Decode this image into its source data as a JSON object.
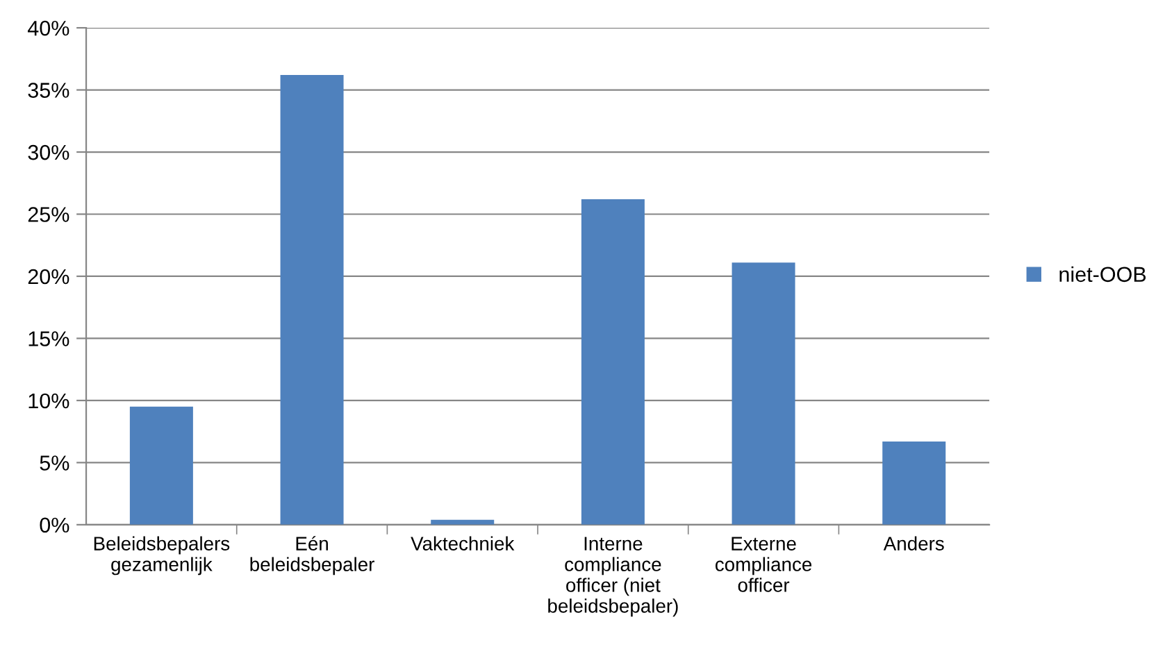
{
  "chart_data": {
    "type": "bar",
    "categories": [
      "Beleidsbepalers\ngezamenlijk",
      "Eén\nbeleidsbepaler",
      "Vaktechniek",
      "Interne\ncompliance\nofficer (niet\nbeleidsbepaler)",
      "Externe\ncompliance\nofficer",
      "Anders"
    ],
    "series": [
      {
        "name": "niet-OOB",
        "color": "#4f81bd",
        "values": [
          9.5,
          36.2,
          0.4,
          26.2,
          21.1,
          6.7
        ]
      }
    ],
    "ylim": [
      0,
      40
    ],
    "yticks": [
      {
        "value": 0,
        "label": "0%"
      },
      {
        "value": 5,
        "label": "5%"
      },
      {
        "value": 10,
        "label": "10%"
      },
      {
        "value": 15,
        "label": "15%"
      },
      {
        "value": 20,
        "label": "20%"
      },
      {
        "value": 25,
        "label": "25%"
      },
      {
        "value": 30,
        "label": "30%"
      },
      {
        "value": 35,
        "label": "35%"
      },
      {
        "value": 40,
        "label": "40%"
      }
    ],
    "grid": "y",
    "legend": "right"
  }
}
